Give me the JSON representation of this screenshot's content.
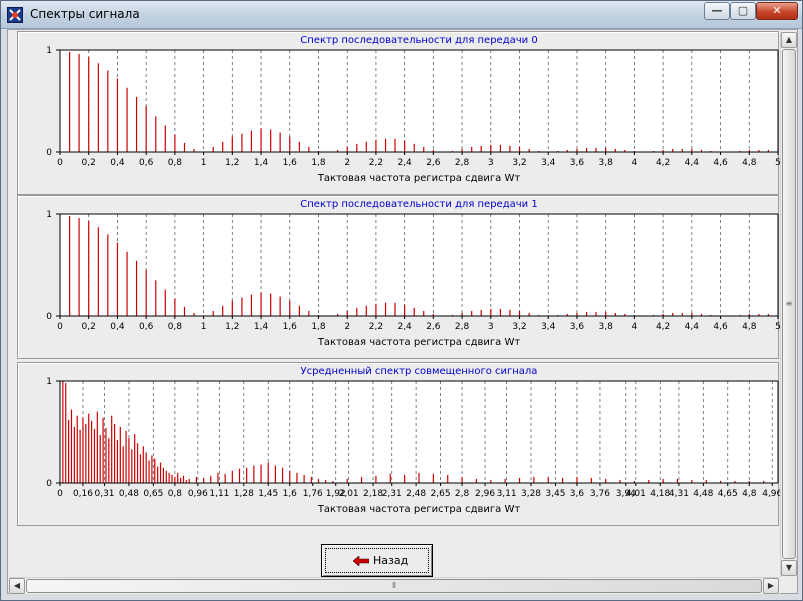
{
  "window": {
    "title": "Спектры сигнала",
    "min_glyph": "—",
    "max_glyph": "▢",
    "close_glyph": "✕"
  },
  "back_button": {
    "label": "Назад"
  },
  "colors": {
    "bars": "#cc0000",
    "title": "#0000cc",
    "grid": "#606060"
  },
  "chart_data": [
    {
      "type": "bar",
      "title": "Спектр  последовательности для передачи 0",
      "xlabel": "Тактовая частота регистра сдвига Wт",
      "ylabel": "",
      "xlim": [
        0,
        5
      ],
      "ylim": [
        0,
        1
      ],
      "y_ticks": [
        "1",
        "0"
      ],
      "x_tick_labels": [
        "0",
        "0,2",
        "0,4",
        "0,6",
        "0,8",
        "1",
        "1,2",
        "1,4",
        "1,6",
        "1,8",
        "2",
        "2,2",
        "2,4",
        "2,6",
        "2,8",
        "3",
        "3,2",
        "3,4",
        "3,6",
        "3,8",
        "4",
        "4,2",
        "4,4",
        "4,6",
        "4,8",
        "5"
      ],
      "x_tick_values": [
        0,
        0.2,
        0.4,
        0.6,
        0.8,
        1.0,
        1.2,
        1.4,
        1.6,
        1.8,
        2.0,
        2.2,
        2.4,
        2.6,
        2.8,
        3.0,
        3.2,
        3.4,
        3.6,
        3.8,
        4.0,
        4.2,
        4.4,
        4.6,
        4.8,
        5.0
      ],
      "grid": "vertical dashed",
      "x": [
        0.067,
        0.133,
        0.2,
        0.267,
        0.333,
        0.4,
        0.467,
        0.533,
        0.6,
        0.667,
        0.733,
        0.8,
        0.867,
        0.933,
        1.0,
        1.067,
        1.133,
        1.2,
        1.267,
        1.333,
        1.4,
        1.467,
        1.533,
        1.6,
        1.667,
        1.733,
        1.8,
        1.867,
        1.933,
        2.0,
        2.067,
        2.133,
        2.2,
        2.267,
        2.333,
        2.4,
        2.467,
        2.533,
        2.6,
        2.667,
        2.733,
        2.8,
        2.867,
        2.933,
        3.0,
        3.067,
        3.133,
        3.2,
        3.267,
        3.333,
        3.4,
        3.467,
        3.533,
        3.6,
        3.667,
        3.733,
        3.8,
        3.867,
        3.933,
        4.0,
        4.067,
        4.133,
        4.2,
        4.267,
        4.333,
        4.4,
        4.467,
        4.533,
        4.6,
        4.667,
        4.733,
        4.8,
        4.867,
        4.933
      ],
      "values": [
        0.98,
        0.96,
        0.93,
        0.87,
        0.8,
        0.72,
        0.63,
        0.54,
        0.45,
        0.35,
        0.26,
        0.17,
        0.09,
        0.03,
        0.0,
        0.05,
        0.1,
        0.15,
        0.18,
        0.21,
        0.23,
        0.22,
        0.19,
        0.15,
        0.1,
        0.05,
        0.01,
        0.0,
        0.02,
        0.05,
        0.08,
        0.1,
        0.12,
        0.13,
        0.13,
        0.11,
        0.08,
        0.05,
        0.02,
        0.0,
        0.01,
        0.03,
        0.05,
        0.06,
        0.07,
        0.07,
        0.06,
        0.05,
        0.03,
        0.01,
        0.0,
        0.01,
        0.02,
        0.03,
        0.04,
        0.04,
        0.04,
        0.03,
        0.02,
        0.01,
        0.0,
        0.01,
        0.02,
        0.03,
        0.03,
        0.03,
        0.02,
        0.01,
        0.0,
        0.0,
        0.01,
        0.02,
        0.02,
        0.02
      ]
    },
    {
      "type": "bar",
      "title": "Спектр последовательности для передачи 1",
      "xlabel": "Тактовая частота регистра сдвига Wт",
      "ylabel": "",
      "xlim": [
        0,
        5
      ],
      "ylim": [
        0,
        1
      ],
      "y_ticks": [
        "1",
        "0"
      ],
      "x_tick_labels": [
        "0",
        "0,2",
        "0,4",
        "0,6",
        "0,8",
        "1",
        "1,2",
        "1,4",
        "1,6",
        "1,8",
        "2",
        "2,2",
        "2,4",
        "2,6",
        "2,8",
        "3",
        "3,2",
        "3,4",
        "3,6",
        "3,8",
        "4",
        "4,2",
        "4,4",
        "4,6",
        "4,8",
        "5"
      ],
      "x_tick_values": [
        0,
        0.2,
        0.4,
        0.6,
        0.8,
        1.0,
        1.2,
        1.4,
        1.6,
        1.8,
        2.0,
        2.2,
        2.4,
        2.6,
        2.8,
        3.0,
        3.2,
        3.4,
        3.6,
        3.8,
        4.0,
        4.2,
        4.4,
        4.6,
        4.8,
        5.0
      ],
      "grid": "vertical dashed",
      "x": [
        0.067,
        0.133,
        0.2,
        0.267,
        0.333,
        0.4,
        0.467,
        0.533,
        0.6,
        0.667,
        0.733,
        0.8,
        0.867,
        0.933,
        1.0,
        1.067,
        1.133,
        1.2,
        1.267,
        1.333,
        1.4,
        1.467,
        1.533,
        1.6,
        1.667,
        1.733,
        1.8,
        1.867,
        1.933,
        2.0,
        2.067,
        2.133,
        2.2,
        2.267,
        2.333,
        2.4,
        2.467,
        2.533,
        2.6,
        2.667,
        2.733,
        2.8,
        2.867,
        2.933,
        3.0,
        3.067,
        3.133,
        3.2,
        3.267,
        3.333,
        3.4,
        3.467,
        3.533,
        3.6,
        3.667,
        3.733,
        3.8,
        3.867,
        3.933,
        4.0,
        4.067,
        4.133,
        4.2,
        4.267,
        4.333,
        4.4,
        4.467,
        4.533,
        4.6,
        4.667,
        4.733,
        4.8,
        4.867,
        4.933
      ],
      "values": [
        0.98,
        0.96,
        0.93,
        0.87,
        0.8,
        0.72,
        0.63,
        0.54,
        0.45,
        0.35,
        0.26,
        0.17,
        0.09,
        0.03,
        0.0,
        0.05,
        0.1,
        0.15,
        0.18,
        0.21,
        0.23,
        0.22,
        0.19,
        0.15,
        0.1,
        0.05,
        0.01,
        0.0,
        0.02,
        0.05,
        0.08,
        0.1,
        0.12,
        0.13,
        0.13,
        0.11,
        0.08,
        0.05,
        0.02,
        0.0,
        0.01,
        0.03,
        0.05,
        0.06,
        0.07,
        0.07,
        0.06,
        0.05,
        0.03,
        0.01,
        0.0,
        0.01,
        0.02,
        0.03,
        0.04,
        0.04,
        0.04,
        0.03,
        0.02,
        0.01,
        0.0,
        0.01,
        0.02,
        0.03,
        0.03,
        0.03,
        0.02,
        0.01,
        0.0,
        0.0,
        0.01,
        0.02,
        0.02,
        0.02
      ]
    },
    {
      "type": "bar",
      "title": "Усредненный спектр совмещенного сигнала",
      "xlabel": "Тактовая частота регистра сдвига Wт",
      "ylabel": "",
      "xlim": [
        0,
        5
      ],
      "ylim": [
        0,
        1
      ],
      "y_ticks": [
        "1",
        "0"
      ],
      "x_tick_labels": [
        "0",
        "0,16",
        "0,31",
        "0,48",
        "0,65",
        "0,8",
        "0,96",
        "1,11",
        "1,28",
        "1,45",
        "1,6",
        "1,76",
        "1,92",
        "2,01",
        "2,18",
        "2,31",
        "2,48",
        "2,65",
        "2,8",
        "2,96",
        "3,11",
        "3,28",
        "3,45",
        "3,6",
        "3,76",
        "3,94",
        "4,01",
        "4,18",
        "4,31",
        "4,48",
        "4,65",
        "4,8",
        "4,96"
      ],
      "x_tick_values": [
        0,
        0.16,
        0.31,
        0.48,
        0.65,
        0.8,
        0.96,
        1.11,
        1.28,
        1.45,
        1.6,
        1.76,
        1.92,
        2.01,
        2.18,
        2.31,
        2.48,
        2.65,
        2.8,
        2.96,
        3.11,
        3.28,
        3.45,
        3.6,
        3.76,
        3.94,
        4.01,
        4.18,
        4.31,
        4.48,
        4.65,
        4.8,
        4.96
      ],
      "grid": "vertical dashed",
      "x": [
        0.02,
        0.04,
        0.06,
        0.08,
        0.1,
        0.12,
        0.14,
        0.16,
        0.18,
        0.2,
        0.22,
        0.24,
        0.26,
        0.28,
        0.3,
        0.32,
        0.34,
        0.36,
        0.38,
        0.4,
        0.42,
        0.44,
        0.46,
        0.48,
        0.5,
        0.52,
        0.54,
        0.56,
        0.58,
        0.6,
        0.62,
        0.64,
        0.66,
        0.68,
        0.7,
        0.72,
        0.74,
        0.76,
        0.78,
        0.8,
        0.82,
        0.84,
        0.86,
        0.88,
        0.9,
        0.95,
        1.0,
        1.05,
        1.1,
        1.15,
        1.2,
        1.25,
        1.3,
        1.35,
        1.4,
        1.45,
        1.5,
        1.55,
        1.6,
        1.65,
        1.7,
        1.75,
        1.8,
        1.85,
        1.9,
        2.0,
        2.1,
        2.2,
        2.3,
        2.4,
        2.5,
        2.6,
        2.7,
        2.8,
        2.9,
        3.0,
        3.1,
        3.2,
        3.3,
        3.4,
        3.5,
        3.6,
        3.7,
        3.8,
        3.9,
        4.0,
        4.1,
        4.2,
        4.3,
        4.4,
        4.5,
        4.6,
        4.7,
        4.8,
        4.9
      ],
      "values": [
        1.0,
        0.98,
        0.62,
        0.72,
        0.55,
        0.66,
        0.52,
        0.64,
        0.58,
        0.68,
        0.61,
        0.53,
        0.7,
        0.47,
        0.64,
        0.54,
        0.44,
        0.66,
        0.58,
        0.42,
        0.55,
        0.36,
        0.51,
        0.44,
        0.33,
        0.48,
        0.39,
        0.28,
        0.36,
        0.3,
        0.22,
        0.27,
        0.24,
        0.16,
        0.2,
        0.15,
        0.12,
        0.1,
        0.08,
        0.06,
        0.1,
        0.05,
        0.07,
        0.03,
        0.04,
        0.06,
        0.05,
        0.07,
        0.1,
        0.09,
        0.12,
        0.14,
        0.15,
        0.17,
        0.18,
        0.2,
        0.17,
        0.15,
        0.12,
        0.1,
        0.08,
        0.06,
        0.04,
        0.03,
        0.02,
        0.04,
        0.06,
        0.07,
        0.09,
        0.08,
        0.1,
        0.09,
        0.08,
        0.06,
        0.04,
        0.03,
        0.04,
        0.05,
        0.06,
        0.06,
        0.05,
        0.06,
        0.05,
        0.04,
        0.03,
        0.02,
        0.03,
        0.04,
        0.04,
        0.03,
        0.03,
        0.02,
        0.02,
        0.02,
        0.02
      ]
    }
  ]
}
